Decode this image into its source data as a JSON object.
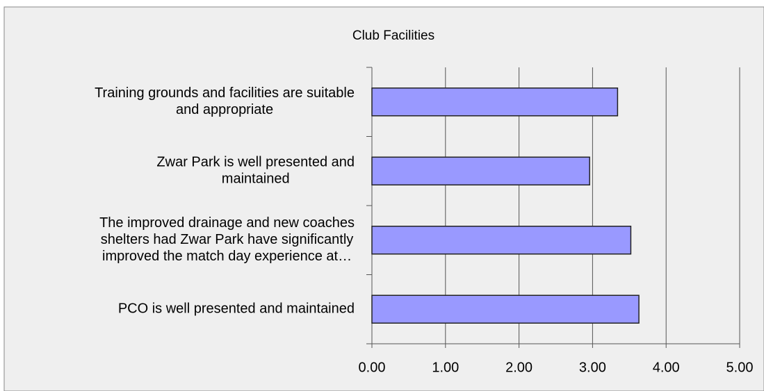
{
  "chart_data": {
    "type": "bar",
    "orientation": "horizontal",
    "title": "Club Facilities",
    "categories": [
      [
        "Training grounds and facilities are suitable",
        "and appropriate"
      ],
      [
        "Zwar Park is well presented and",
        "maintained"
      ],
      [
        "The improved drainage and new coaches",
        "shelters had Zwar Park have significantly",
        "improved the match day experience at…"
      ],
      [
        "PCO is well presented and maintained"
      ]
    ],
    "values": [
      3.34,
      2.96,
      3.52,
      3.63
    ],
    "color": "#9999ff",
    "xlim": [
      0,
      5
    ],
    "xticks": [
      {
        "value": 0,
        "label": "0.00"
      },
      {
        "value": 1,
        "label": "1.00"
      },
      {
        "value": 2,
        "label": "2.00"
      },
      {
        "value": 3,
        "label": "3.00"
      },
      {
        "value": 4,
        "label": "4.00"
      },
      {
        "value": 5,
        "label": "5.00"
      }
    ],
    "grid": true
  }
}
